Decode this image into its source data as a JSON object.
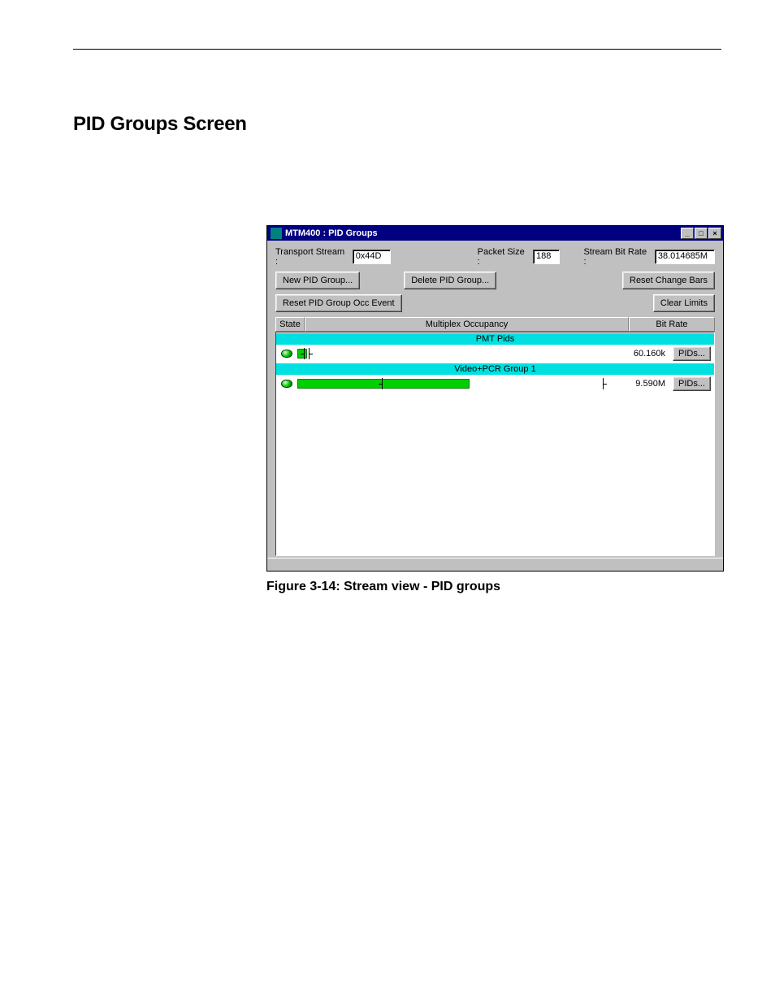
{
  "page": {
    "section_title": "PID Groups Screen",
    "figure_caption": "Figure 3-14: Stream view - PID groups"
  },
  "window": {
    "title": "MTM400 : PID Groups",
    "fields": {
      "transport_stream_label": "Transport Stream :",
      "transport_stream_value": "0x44D",
      "packet_size_label": "Packet Size :",
      "packet_size_value": "188",
      "stream_bit_rate_label": "Stream Bit Rate :",
      "stream_bit_rate_value": "38.014685M"
    },
    "buttons": {
      "new_group": "New PID Group...",
      "delete_group": "Delete PID Group...",
      "reset_change_bars": "Reset Change Bars",
      "reset_occ_event": "Reset PID Group Occ Event",
      "clear_limits": "Clear Limits",
      "pids": "PIDs..."
    },
    "headers": {
      "state": "State",
      "multiplex": "Multiplex Occupancy",
      "bitrate": "Bit Rate"
    },
    "groups": [
      {
        "name": "PMT Pids",
        "bitrate": "60.160k",
        "bar_fill_pct": 3,
        "change_left_pct": 2,
        "change_right_pct": 4
      },
      {
        "name": "Video+PCR Group 1",
        "bitrate": "9.590M",
        "bar_fill_pct": 55,
        "change_left_pct": 27,
        "change_right_pct": 98
      }
    ],
    "colors": {
      "titlebar_bg": "#000080",
      "titlebar_fg": "#ffffff",
      "panel_bg": "#c0c0c0",
      "group_header_bg": "#00e0e0",
      "bar_fill": "#00d000",
      "led_green": "#00c000",
      "list_bg": "#ffffff"
    }
  }
}
